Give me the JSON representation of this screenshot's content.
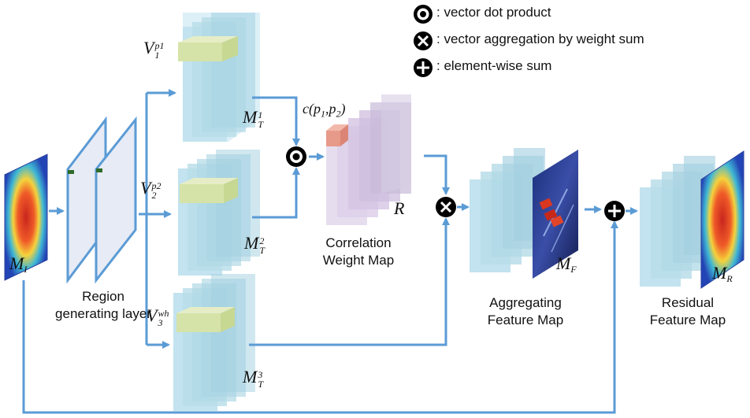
{
  "legend": {
    "dot": ": vector dot product",
    "cross": ": vector aggregation by weight sum",
    "plus": ":  element-wise sum"
  },
  "labels": {
    "region": [
      "Region",
      "generating layer"
    ],
    "correlation": [
      "Correlation",
      "Weight  Map"
    ],
    "aggregating": [
      "Aggregating",
      "Feature Map"
    ],
    "residual": [
      "Residual",
      "Feature Map"
    ]
  },
  "math": {
    "mi": {
      "base": "M",
      "sub": "I"
    },
    "r": {
      "base": "R"
    },
    "mf": {
      "base": "M",
      "sub": "F"
    },
    "mr": {
      "base": "M",
      "sub": "R"
    },
    "v1": {
      "base": "V",
      "sub": "1",
      "sup": "p1"
    },
    "v2": {
      "base": "V",
      "sub": "2",
      "sup": "p2"
    },
    "v3": {
      "base": "V",
      "sub": "3",
      "sup": "wh"
    },
    "mt1": {
      "base": "M",
      "sub": "T",
      "sup": "1"
    },
    "mt2": {
      "base": "M",
      "sub": "T",
      "sup": "2"
    },
    "mt3": {
      "base": "M",
      "sub": "T",
      "sup": "3"
    },
    "corr": "c(p",
    "corr_sub1": "1",
    "corr_mid": ",p",
    "corr_sub2": "2",
    "corr_end": ")"
  },
  "colors": {
    "arrow": "#5b9bd5",
    "cube": "#bfe0ec",
    "cube_edge": "#d6eef6",
    "strip": "#d8e6b0",
    "weight": "#d9c8e6",
    "red_cell": "#e89a8a"
  }
}
